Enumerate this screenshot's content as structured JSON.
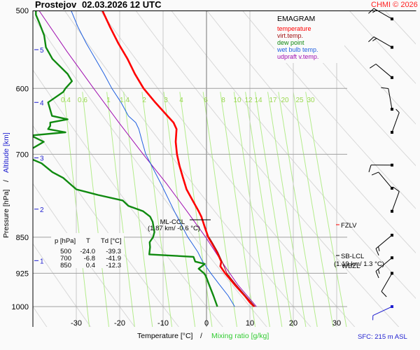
{
  "header": {
    "station": "Prostejov",
    "datetime": "02.03.2026 12 UTC",
    "credit": "CHMI © 2026"
  },
  "chart_data": {
    "type": "line",
    "title": "Prostejov 02.03.2026 12 UTC",
    "diagram": "EMAGRAM",
    "xlabel_temperature": "Temperature [°C]",
    "xlabel_separator": "/",
    "xlabel_mixing": "Mixing ratio [g/kg]",
    "ylabel_pressure": "Pressure [hPa]",
    "ylabel_separator": "/",
    "ylabel_altitude": "Altitude [km]",
    "xlim": [
      -40,
      48
    ],
    "ylim_hpa": [
      1000,
      500
    ],
    "pressure_ticks": [
      500,
      600,
      700,
      850,
      925,
      1000
    ],
    "altitude_ticks": [
      {
        "km": "5",
        "p": 548
      },
      {
        "km": "4",
        "p": 620
      },
      {
        "km": "3",
        "p": 706
      },
      {
        "km": "2",
        "p": 796
      },
      {
        "km": "1",
        "p": 898
      }
    ],
    "temperature_ticks": [
      -30,
      -20,
      -10,
      0,
      10,
      20,
      30
    ],
    "mixing_ratio_ticks": [
      "0.4",
      "0.6",
      "1",
      "1.4",
      "2",
      "3",
      "4",
      "6",
      "8",
      "10",
      "12",
      "14",
      "17",
      "20",
      "25",
      "30"
    ],
    "legend": [
      {
        "label": "temperature",
        "color": "#ff0000"
      },
      {
        "label": "virt.temp.",
        "color": "#a01010"
      },
      {
        "label": "dew point",
        "color": "#108a10"
      },
      {
        "label": "wet bulb temp.",
        "color": "#2060e0"
      },
      {
        "label": "udpraft v.temp.",
        "color": "#a010b0"
      }
    ],
    "series": [
      {
        "name": "temperature",
        "p": [
          1000,
          990,
          975,
          950,
          925,
          910,
          900,
          880,
          860,
          850,
          830,
          810,
          800,
          780,
          760,
          740,
          720,
          700,
          680,
          660,
          650,
          640,
          620,
          600,
          580,
          560,
          540,
          520,
          500
        ],
        "t": [
          11.0,
          10.0,
          8.8,
          6.5,
          4.3,
          3.2,
          3.4,
          2.4,
          1.1,
          0.4,
          -0.4,
          -1.2,
          -1.8,
          -3.2,
          -4.6,
          -5.4,
          -6.2,
          -6.8,
          -7.1,
          -6.9,
          -7.6,
          -9.0,
          -11.8,
          -14.5,
          -16.5,
          -18.2,
          -20.3,
          -22.2,
          -24.0
        ]
      },
      {
        "name": "virt.temp.",
        "p": [
          1000,
          975,
          950,
          925,
          900,
          880,
          860,
          850
        ],
        "t": [
          11.2,
          9.0,
          6.8,
          4.7,
          3.6,
          2.6,
          1.3,
          0.6
        ]
      },
      {
        "name": "dew point",
        "p": [
          1000,
          975,
          950,
          930,
          925,
          915,
          905,
          900,
          890,
          885,
          870,
          860,
          850,
          840,
          820,
          810,
          800,
          790,
          780,
          770,
          760,
          740,
          730,
          715,
          706,
          700,
          690,
          680,
          670,
          665,
          660,
          655,
          650,
          645,
          640,
          620,
          605,
          600,
          590,
          580,
          560,
          545,
          530,
          515,
          505,
          500
        ],
        "t": [
          2.5,
          1.6,
          0.6,
          -0.2,
          -0.6,
          -1.8,
          -0.4,
          -2.6,
          -3.0,
          -13.2,
          -13.0,
          -13.1,
          -12.3,
          -12.0,
          -12.4,
          -13.0,
          -14.6,
          -18.0,
          -19.3,
          -25.0,
          -30.0,
          -33.0,
          -35.5,
          -38.0,
          -41.0,
          -41.9,
          -40.0,
          -37.5,
          -40.5,
          -32.5,
          -36.5,
          -36.0,
          -36.0,
          -32.0,
          -35.6,
          -36.5,
          -33.0,
          -32.5,
          -31.0,
          -32.0,
          -35.5,
          -37.0,
          -37.4,
          -38.5,
          -39.3,
          -39.3
        ]
      },
      {
        "name": "wet bulb temp.",
        "p": [
          1000,
          975,
          950,
          925,
          900,
          880,
          860,
          850,
          800,
          750,
          700,
          680,
          660,
          650,
          640,
          620,
          600,
          580,
          560,
          540,
          520,
          500
        ],
        "t": [
          6.5,
          5.0,
          3.0,
          1.0,
          -0.9,
          -2.0,
          -3.5,
          -4.3,
          -7.4,
          -10.5,
          -14.0,
          -14.8,
          -15.6,
          -16.3,
          -18.0,
          -19.7,
          -21.8,
          -23.6,
          -25.6,
          -27.7,
          -29.6,
          -31.2
        ]
      },
      {
        "name": "udpraft v.temp.",
        "p": [
          1000,
          950,
          900,
          850,
          800,
          750,
          700,
          650,
          600,
          550,
          500
        ],
        "t": [
          11.5,
          7.2,
          3.5,
          -0.2,
          -4.5,
          -9.2,
          -14.6,
          -20.2,
          -26.0,
          -32.2,
          -38.6
        ]
      }
    ],
    "annotations": [
      {
        "label": "ML-CCL",
        "detail": "(1.87 km/ -0.6 °C)",
        "p": 812
      },
      {
        "label": "FZLV",
        "p": 846,
        "color": "#ff0000"
      },
      {
        "label": "SB-LCL",
        "detail": "(1.19 km/ 1.3 °C)",
        "p": 878
      },
      {
        "label": "WBZL",
        "p": 893,
        "color": "#2060e0"
      }
    ],
    "table": {
      "headers": [
        "p [hPa]",
        "T",
        "Td [°C]"
      ],
      "rows": [
        [
          "500",
          "-24.0",
          "-39.3"
        ],
        [
          "700",
          "-6.8",
          "-41.9"
        ],
        [
          "850",
          "0.4",
          "-12.3"
        ]
      ]
    },
    "wind_barbs": [
      {
        "p": 510,
        "dir": 300,
        "speed_kt": 15
      },
      {
        "p": 545,
        "dir": 300,
        "speed_kt": 15
      },
      {
        "p": 585,
        "dir": 310,
        "speed_kt": 10
      },
      {
        "p": 630,
        "dir": 350,
        "speed_kt": 10
      },
      {
        "p": 665,
        "dir": 20,
        "speed_kt": 5
      },
      {
        "p": 718,
        "dir": 270,
        "speed_kt": 10
      },
      {
        "p": 758,
        "dir": 320,
        "speed_kt": 10
      },
      {
        "p": 800,
        "dir": 20,
        "speed_kt": 10
      },
      {
        "p": 846,
        "dir": 230,
        "speed_kt": 15
      },
      {
        "p": 892,
        "dir": 230,
        "speed_kt": 15
      },
      {
        "p": 925,
        "dir": 210,
        "speed_kt": 10
      },
      {
        "p": 1000,
        "dir": 245,
        "speed_kt": 5,
        "color": "#1f1fd0"
      }
    ],
    "surface": "SFC: 215 m ASL"
  }
}
